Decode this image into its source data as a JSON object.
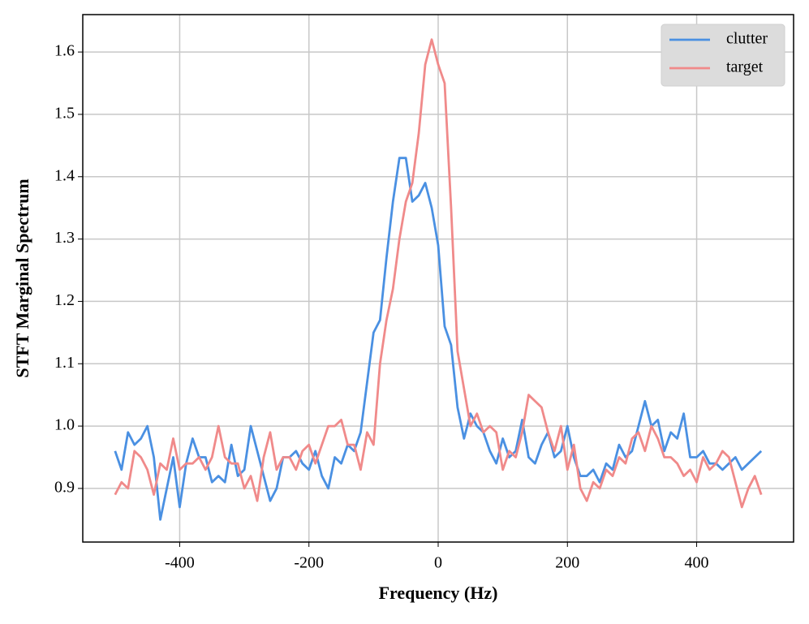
{
  "chart_data": {
    "type": "line",
    "xlabel": "Frequency (Hz)",
    "ylabel": "STFT Marginal Spectrum",
    "x": [
      -500,
      -490,
      -480,
      -470,
      -460,
      -450,
      -440,
      -430,
      -420,
      -410,
      -400,
      -390,
      -380,
      -370,
      -360,
      -350,
      -340,
      -330,
      -320,
      -310,
      -300,
      -290,
      -280,
      -270,
      -260,
      -250,
      -240,
      -230,
      -220,
      -210,
      -200,
      -190,
      -180,
      -170,
      -160,
      -150,
      -140,
      -130,
      -120,
      -110,
      -100,
      -90,
      -80,
      -70,
      -60,
      -50,
      -40,
      -30,
      -20,
      -10,
      0,
      10,
      20,
      30,
      40,
      50,
      60,
      70,
      80,
      90,
      100,
      110,
      120,
      130,
      140,
      150,
      160,
      170,
      180,
      190,
      200,
      210,
      220,
      230,
      240,
      250,
      260,
      270,
      280,
      290,
      300,
      310,
      320,
      330,
      340,
      350,
      360,
      370,
      380,
      390,
      400,
      410,
      420,
      430,
      440,
      450,
      460,
      470,
      480,
      490,
      500
    ],
    "series": [
      {
        "name": "clutter",
        "color": "#4a90e2",
        "values": [
          0.96,
          0.93,
          0.99,
          0.97,
          0.98,
          1.0,
          0.95,
          0.85,
          0.9,
          0.95,
          0.87,
          0.94,
          0.98,
          0.95,
          0.95,
          0.91,
          0.92,
          0.91,
          0.97,
          0.92,
          0.93,
          1.0,
          0.96,
          0.92,
          0.88,
          0.9,
          0.95,
          0.95,
          0.96,
          0.94,
          0.93,
          0.96,
          0.92,
          0.9,
          0.95,
          0.94,
          0.97,
          0.96,
          0.99,
          1.07,
          1.15,
          1.17,
          1.27,
          1.36,
          1.43,
          1.43,
          1.36,
          1.37,
          1.39,
          1.35,
          1.29,
          1.16,
          1.13,
          1.03,
          0.98,
          1.02,
          1.0,
          0.99,
          0.96,
          0.94,
          0.98,
          0.95,
          0.96,
          1.01,
          0.95,
          0.94,
          0.97,
          0.99,
          0.95,
          0.96,
          1.0,
          0.95,
          0.92,
          0.92,
          0.93,
          0.91,
          0.94,
          0.93,
          0.97,
          0.95,
          0.96,
          1.0,
          1.04,
          1.0,
          1.01,
          0.96,
          0.99,
          0.98,
          1.02,
          0.95,
          0.95,
          0.96,
          0.94,
          0.94,
          0.93,
          0.94,
          0.95,
          0.93,
          0.94,
          0.95,
          0.96
        ]
      },
      {
        "name": "target",
        "color": "#f08a8a",
        "values": [
          0.89,
          0.91,
          0.9,
          0.96,
          0.95,
          0.93,
          0.89,
          0.94,
          0.93,
          0.98,
          0.93,
          0.94,
          0.94,
          0.95,
          0.93,
          0.95,
          1.0,
          0.95,
          0.94,
          0.94,
          0.9,
          0.92,
          0.88,
          0.95,
          0.99,
          0.93,
          0.95,
          0.95,
          0.93,
          0.96,
          0.97,
          0.94,
          0.97,
          1.0,
          1.0,
          1.01,
          0.97,
          0.97,
          0.93,
          0.99,
          0.97,
          1.1,
          1.17,
          1.22,
          1.3,
          1.36,
          1.39,
          1.47,
          1.58,
          1.62,
          1.58,
          1.55,
          1.35,
          1.12,
          1.06,
          1.0,
          1.02,
          0.99,
          1.0,
          0.99,
          0.93,
          0.96,
          0.95,
          0.99,
          1.05,
          1.04,
          1.03,
          0.99,
          0.96,
          1.0,
          0.93,
          0.97,
          0.9,
          0.88,
          0.91,
          0.9,
          0.93,
          0.92,
          0.95,
          0.94,
          0.98,
          0.99,
          0.96,
          1.0,
          0.98,
          0.95,
          0.95,
          0.94,
          0.92,
          0.93,
          0.91,
          0.95,
          0.93,
          0.94,
          0.96,
          0.95,
          0.91,
          0.87,
          0.9,
          0.92,
          0.89
        ]
      }
    ],
    "xlim": [
      -550,
      550
    ],
    "ylim": [
      0.814,
      1.66
    ],
    "xticks": [
      -400,
      -200,
      0,
      200,
      400
    ],
    "yticks": [
      0.9,
      {
        "value": 1,
        "label": "1.0"
      },
      1.1,
      1.2,
      1.3,
      1.4,
      1.5,
      1.6
    ],
    "grid": true,
    "legend": "upper right"
  }
}
